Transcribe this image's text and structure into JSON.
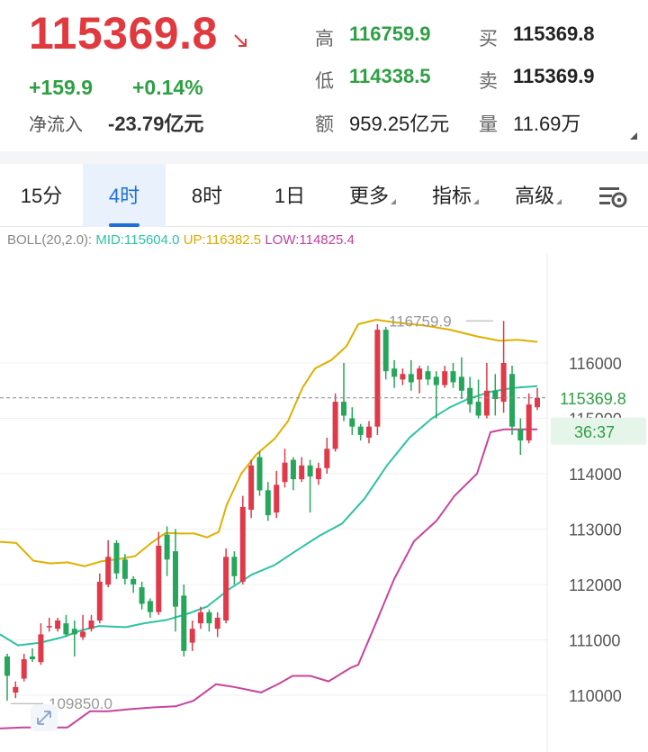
{
  "quote": {
    "price": "115369.8",
    "change": "+159.9",
    "change_pct": "+0.14%",
    "net_flow_label": "净流入",
    "net_flow": "-23.79亿元",
    "high_label": "高",
    "high": "116759.9",
    "low_label": "低",
    "low": "114338.5",
    "amount_label": "额",
    "amount": "959.25亿元",
    "bid_label": "买",
    "bid": "115369.8",
    "ask_label": "卖",
    "ask": "115369.9",
    "volume_label": "量",
    "volume": "11.69万"
  },
  "tabs": [
    {
      "label": "15分"
    },
    {
      "label": "4时",
      "active": true
    },
    {
      "label": "8时"
    },
    {
      "label": "1日"
    },
    {
      "label": "更多",
      "dropdown": true
    },
    {
      "label": "指标",
      "dropdown": true
    },
    {
      "label": "高级",
      "dropdown": true
    }
  ],
  "indicator": {
    "name": "BOLL(20,2.0):",
    "mid": "MID:115604.0",
    "up": "UP:116382.5",
    "low": "LOW:114825.4"
  },
  "colors": {
    "up_candle": "#e0394a",
    "down_candle": "#26a65b",
    "boll_mid": "#2ec2a4",
    "boll_up": "#e0b000",
    "boll_low": "#c8449e",
    "price_tag": "#2ea043"
  },
  "chart_data": {
    "type": "candlestick",
    "title": "",
    "ylim": [
      109400,
      117400
    ],
    "yticks": [
      {
        "value": 110000,
        "label": "110000"
      },
      {
        "value": 111000,
        "label": "111000"
      },
      {
        "value": 112000,
        "label": "112000"
      },
      {
        "value": 113000,
        "label": "113000"
      },
      {
        "value": 114000,
        "label": "114000"
      },
      {
        "value": 115000,
        "label": "115000"
      },
      {
        "value": 116000,
        "label": "116000"
      }
    ],
    "current_price": {
      "value": 115369.8,
      "label": "115369.8",
      "countdown": "36:37"
    },
    "annotations": [
      {
        "label": "116759.9",
        "value": 116759.9,
        "type": "max"
      },
      {
        "label": "109850.0",
        "value": 109850.0,
        "type": "min"
      }
    ],
    "candles": [
      [
        110700,
        110350,
        110750,
        109900
      ],
      [
        110050,
        110150,
        110250,
        109950
      ],
      [
        110300,
        110650,
        110750,
        110250
      ],
      [
        110700,
        110650,
        110850,
        110600
      ],
      [
        110600,
        111100,
        111300,
        110550
      ],
      [
        111250,
        111250,
        111400,
        111150
      ],
      [
        111200,
        111350,
        111400,
        111150
      ],
      [
        111300,
        111100,
        111450,
        111050
      ],
      [
        111200,
        111100,
        111350,
        110700
      ],
      [
        111050,
        111150,
        111450,
        111000
      ],
      [
        111200,
        111350,
        111450,
        111150
      ],
      [
        111350,
        112050,
        112200,
        111300
      ],
      [
        112000,
        112500,
        112800,
        111950
      ],
      [
        112750,
        112200,
        112800,
        112100
      ],
      [
        112450,
        112100,
        112550,
        112000
      ],
      [
        112100,
        112000,
        112150,
        111850
      ],
      [
        111950,
        111650,
        112050,
        111550
      ],
      [
        111700,
        111500,
        111750,
        111400
      ],
      [
        111500,
        112700,
        112950,
        111450
      ],
      [
        112900,
        112450,
        113050,
        112150
      ],
      [
        112600,
        111600,
        113000,
        111150
      ],
      [
        111800,
        110800,
        112000,
        110700
      ],
      [
        110950,
        111200,
        111350,
        110800
      ],
      [
        111300,
        111500,
        111600,
        111200
      ],
      [
        111500,
        111300,
        111550,
        111150
      ],
      [
        111200,
        111400,
        111500,
        111050
      ],
      [
        111350,
        112500,
        112650,
        111300
      ],
      [
        112500,
        112150,
        112600,
        112000
      ],
      [
        112050,
        113400,
        113600,
        112000
      ],
      [
        113350,
        114150,
        114250,
        113200
      ],
      [
        114300,
        113700,
        114400,
        113600
      ],
      [
        113700,
        113250,
        113850,
        113150
      ],
      [
        113300,
        113800,
        114050,
        113200
      ],
      [
        113850,
        114200,
        114450,
        113750
      ],
      [
        114250,
        113900,
        114300,
        113700
      ],
      [
        113900,
        114150,
        114300,
        113850
      ],
      [
        114150,
        113950,
        114250,
        113300
      ],
      [
        113900,
        114100,
        114200,
        113800
      ],
      [
        114100,
        114450,
        114650,
        114000
      ],
      [
        114450,
        115300,
        115450,
        114400
      ],
      [
        115300,
        115050,
        116000,
        114950
      ],
      [
        115000,
        114850,
        115200,
        114700
      ],
      [
        114850,
        114700,
        114900,
        114600
      ],
      [
        114650,
        114850,
        114950,
        114550
      ],
      [
        114850,
        116600,
        116700,
        114700
      ],
      [
        116600,
        115850,
        116650,
        115700
      ],
      [
        115900,
        115750,
        116050,
        115550
      ],
      [
        115700,
        115800,
        115900,
        115600
      ],
      [
        115800,
        115650,
        116050,
        115500
      ],
      [
        115700,
        115900,
        115950,
        115450
      ],
      [
        115850,
        115700,
        115950,
        115600
      ],
      [
        115750,
        115600,
        115850,
        115000
      ],
      [
        115600,
        115850,
        115950,
        115550
      ],
      [
        115850,
        115650,
        116000,
        115550
      ],
      [
        115750,
        115500,
        116100,
        115350
      ],
      [
        115550,
        115250,
        115750,
        115100
      ],
      [
        115300,
        115050,
        115700,
        115000
      ],
      [
        115050,
        115500,
        116000,
        115000
      ],
      [
        115500,
        115350,
        115800,
        115050
      ],
      [
        115300,
        116000,
        116760,
        115100
      ],
      [
        115800,
        114850,
        115950,
        114700
      ],
      [
        114800,
        114600,
        115000,
        114340
      ],
      [
        114600,
        115250,
        115450,
        114550
      ],
      [
        115200,
        115369.8,
        115550,
        115150
      ]
    ],
    "boll_up": [
      [
        0,
        112770
      ],
      [
        18,
        112750
      ],
      [
        37,
        112430
      ],
      [
        56,
        112380
      ],
      [
        75,
        112400
      ],
      [
        94,
        112330
      ],
      [
        113,
        112420
      ],
      [
        132,
        112460
      ],
      [
        150,
        112510
      ],
      [
        168,
        112750
      ],
      [
        184,
        112930
      ],
      [
        200,
        112920
      ],
      [
        216,
        112920
      ],
      [
        230,
        112850
      ],
      [
        243,
        112950
      ],
      [
        252,
        113440
      ],
      [
        268,
        114000
      ],
      [
        285,
        114350
      ],
      [
        305,
        114630
      ],
      [
        320,
        114950
      ],
      [
        336,
        115550
      ],
      [
        350,
        115900
      ],
      [
        368,
        116050
      ],
      [
        385,
        116300
      ],
      [
        398,
        116700
      ],
      [
        418,
        116780
      ],
      [
        440,
        116730
      ],
      [
        470,
        116680
      ],
      [
        500,
        116600
      ],
      [
        530,
        116480
      ],
      [
        555,
        116400
      ],
      [
        575,
        116420
      ],
      [
        597,
        116380
      ]
    ],
    "boll_mid": [
      [
        0,
        111100
      ],
      [
        20,
        110900
      ],
      [
        45,
        110950
      ],
      [
        70,
        111050
      ],
      [
        90,
        111170
      ],
      [
        110,
        111250
      ],
      [
        140,
        111230
      ],
      [
        160,
        111300
      ],
      [
        185,
        111360
      ],
      [
        210,
        111480
      ],
      [
        230,
        111600
      ],
      [
        255,
        111920
      ],
      [
        280,
        112180
      ],
      [
        305,
        112350
      ],
      [
        330,
        112620
      ],
      [
        355,
        112880
      ],
      [
        380,
        113100
      ],
      [
        405,
        113550
      ],
      [
        430,
        114150
      ],
      [
        455,
        114650
      ],
      [
        480,
        115000
      ],
      [
        500,
        115200
      ],
      [
        520,
        115350
      ],
      [
        545,
        115480
      ],
      [
        570,
        115550
      ],
      [
        597,
        115580
      ]
    ],
    "boll_low": [
      [
        0,
        109400
      ],
      [
        25,
        109420
      ],
      [
        50,
        109420
      ],
      [
        75,
        109420
      ],
      [
        100,
        109710
      ],
      [
        120,
        109710
      ],
      [
        145,
        109750
      ],
      [
        170,
        109780
      ],
      [
        195,
        109800
      ],
      [
        215,
        109900
      ],
      [
        240,
        110200
      ],
      [
        260,
        110150
      ],
      [
        290,
        110050
      ],
      [
        310,
        110210
      ],
      [
        325,
        110350
      ],
      [
        345,
        110350
      ],
      [
        365,
        110250
      ],
      [
        390,
        110500
      ],
      [
        398,
        110550
      ],
      [
        415,
        111200
      ],
      [
        438,
        112100
      ],
      [
        460,
        112780
      ],
      [
        485,
        113150
      ],
      [
        505,
        113600
      ],
      [
        530,
        114000
      ],
      [
        545,
        114750
      ],
      [
        560,
        114800
      ],
      [
        597,
        114800
      ]
    ]
  }
}
